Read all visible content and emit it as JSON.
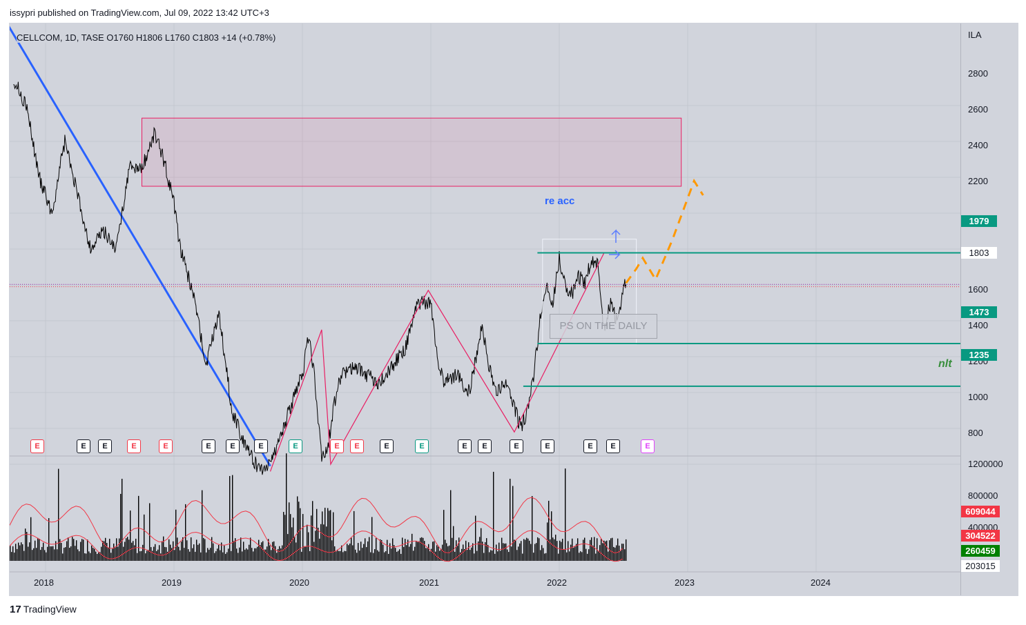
{
  "header": {
    "published_text": "issypri published on TradingView.com, Jul 09, 2022 13:42 UTC+3"
  },
  "symbol_info": {
    "text": "CELLCOM, 1D, TASE  O1760  H1806  L1760  C1803  +14 (+0.78%)"
  },
  "price_axis": {
    "currency": "ILA",
    "ticks": [
      "2800",
      "2600",
      "2400",
      "2200",
      "1600",
      "1400",
      "1200",
      "1000",
      "800"
    ],
    "volume_ticks": [
      "1200000",
      "800000",
      "400000"
    ]
  },
  "time_axis": {
    "ticks": [
      "2018",
      "2019",
      "2020",
      "2021",
      "2022",
      "2023",
      "2024"
    ]
  },
  "levels": {
    "l1979": "1979",
    "l1803": "1803",
    "l1473": "1473",
    "l1235": "1235"
  },
  "volume_tags": {
    "v1": "609044",
    "v2": "304522",
    "v3": "260459",
    "v4": "203015"
  },
  "annotations": {
    "re_acc": "re acc",
    "ps_daily": "PS ON THE DAILY",
    "nlt": "nlt"
  },
  "earnings_badges": [
    {
      "label": "E",
      "kind": "red"
    },
    {
      "label": "E",
      "kind": "gray"
    },
    {
      "label": "E",
      "kind": "gray"
    },
    {
      "label": "E",
      "kind": "red"
    },
    {
      "label": "E",
      "kind": "red"
    },
    {
      "label": "E",
      "kind": "gray"
    },
    {
      "label": "E",
      "kind": "gray"
    },
    {
      "label": "E",
      "kind": "gray"
    },
    {
      "label": "E",
      "kind": "green"
    },
    {
      "label": "E",
      "kind": "red"
    },
    {
      "label": "E",
      "kind": "red"
    },
    {
      "label": "E",
      "kind": "gray"
    },
    {
      "label": "E",
      "kind": "green"
    },
    {
      "label": "E",
      "kind": "gray"
    },
    {
      "label": "E",
      "kind": "gray"
    },
    {
      "label": "E",
      "kind": "gray"
    },
    {
      "label": "E",
      "kind": "gray"
    },
    {
      "label": "E",
      "kind": "gray"
    },
    {
      "label": "E",
      "kind": "gray"
    },
    {
      "label": "E",
      "kind": "purple"
    }
  ],
  "colors": {
    "background": "#d1d4dc",
    "price_line": "#000000",
    "trend_line": "#2962ff",
    "zigzag": "#e91e63",
    "level_line": "#089981",
    "projection": "#ff9800",
    "volume_ma": "#f23645"
  },
  "footer": {
    "brand": "TradingView",
    "logo": "17"
  },
  "chart_data": {
    "type": "line",
    "title": "CELLCOM, 1D, TASE",
    "ylabel": "ILA",
    "ylim": [
      700,
      2950
    ],
    "x_domain": [
      2017.65,
      2024.9
    ],
    "series": [
      {
        "name": "CELLCOM",
        "x": [
          2017.75,
          2017.85,
          2017.95,
          2018.05,
          2018.15,
          2018.25,
          2018.35,
          2018.45,
          2018.55,
          2018.65,
          2018.75,
          2018.85,
          2018.92,
          2019.0,
          2019.05,
          2019.15,
          2019.25,
          2019.35,
          2019.45,
          2019.55,
          2019.65,
          2019.72,
          2019.8,
          2019.9,
          2020.0,
          2020.05,
          2020.1,
          2020.15,
          2020.2,
          2020.25,
          2020.3,
          2020.4,
          2020.5,
          2020.6,
          2020.7,
          2020.8,
          2020.9,
          2021.0,
          2021.05,
          2021.1,
          2021.2,
          2021.3,
          2021.4,
          2021.45,
          2021.5,
          2021.6,
          2021.7,
          2021.75,
          2021.8,
          2021.85,
          2021.9,
          2021.95,
          2022.0,
          2022.05,
          2022.1,
          2022.15,
          2022.2,
          2022.25,
          2022.3,
          2022.35,
          2022.4,
          2022.45,
          2022.5,
          2022.52
        ],
        "y": [
          2950,
          2800,
          2400,
          2200,
          2600,
          2300,
          2000,
          2100,
          2000,
          2450,
          2450,
          2650,
          2500,
          2250,
          2000,
          1750,
          1350,
          1650,
          1100,
          920,
          780,
          780,
          900,
          1100,
          1300,
          1530,
          1250,
          820,
          900,
          1150,
          1300,
          1350,
          1300,
          1250,
          1350,
          1450,
          1700,
          1700,
          1400,
          1250,
          1300,
          1200,
          1580,
          1350,
          1200,
          1250,
          1000,
          1100,
          1300,
          1600,
          1800,
          1700,
          1950,
          1800,
          1750,
          1850,
          1800,
          1950,
          1900,
          1550,
          1700,
          1600,
          1780,
          1803
        ]
      }
    ],
    "horizontal_levels": [
      1979,
      1803,
      1473,
      1235
    ],
    "zone": {
      "x": [
        2018.75,
        2022.95
      ],
      "y": [
        2350,
        2730
      ]
    },
    "volume": {
      "ticks": [
        1200000,
        800000,
        400000
      ],
      "last_values": [
        609044,
        304522,
        260459,
        203015
      ]
    }
  }
}
